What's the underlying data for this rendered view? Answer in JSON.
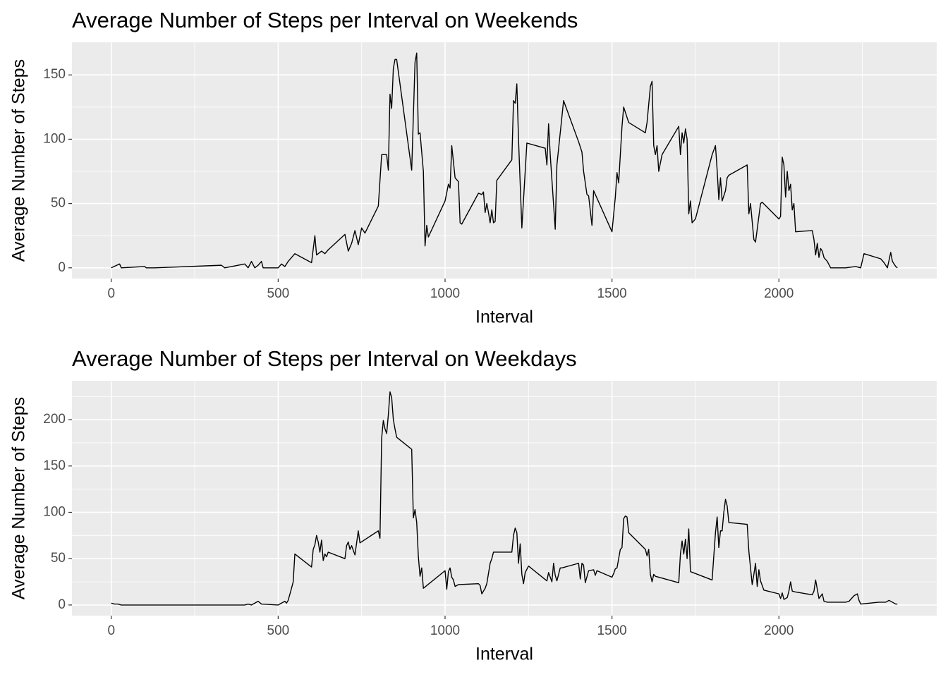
{
  "chart_data": [
    {
      "type": "line",
      "title": "Average Number of Steps per Interval on Weekends",
      "x_label": "Interval",
      "y_label": "Average Number of Steps",
      "color": "#000000",
      "xlim": [
        -117.75,
        2472.75
      ],
      "xticks": [
        0,
        500,
        1000,
        1500,
        2000
      ],
      "minor_xticks": [
        250,
        750,
        1250,
        1750,
        2250
      ],
      "ylim": [
        -8.35,
        175.35
      ],
      "yticks": [
        0,
        50,
        100,
        150
      ],
      "minor_yticks": [
        25,
        75,
        125
      ],
      "grid": true,
      "x": [
        0,
        25,
        30,
        100,
        105,
        130,
        330,
        340,
        400,
        410,
        420,
        430,
        440,
        450,
        455,
        500,
        510,
        520,
        530,
        550,
        600,
        610,
        615,
        630,
        640,
        650,
        700,
        710,
        720,
        730,
        740,
        750,
        760,
        800,
        810,
        825,
        830,
        835,
        840,
        845,
        850,
        855,
        900,
        910,
        915,
        920,
        925,
        935,
        940,
        945,
        950,
        1000,
        1010,
        1015,
        1020,
        1030,
        1040,
        1045,
        1050,
        1100,
        1110,
        1115,
        1120,
        1125,
        1130,
        1135,
        1140,
        1145,
        1150,
        1155,
        1200,
        1205,
        1210,
        1215,
        1220,
        1230,
        1245,
        1300,
        1305,
        1310,
        1315,
        1330,
        1335,
        1355,
        1400,
        1410,
        1415,
        1425,
        1430,
        1440,
        1445,
        1500,
        1510,
        1515,
        1520,
        1530,
        1535,
        1550,
        1600,
        1605,
        1615,
        1620,
        1625,
        1630,
        1635,
        1640,
        1650,
        1700,
        1705,
        1710,
        1715,
        1720,
        1725,
        1730,
        1735,
        1740,
        1750,
        1800,
        1810,
        1815,
        1820,
        1825,
        1830,
        1840,
        1845,
        1850,
        1905,
        1910,
        1915,
        1925,
        1930,
        1945,
        1950,
        2000,
        2005,
        2010,
        2015,
        2020,
        2025,
        2030,
        2035,
        2040,
        2045,
        2050,
        2100,
        2105,
        2110,
        2115,
        2120,
        2125,
        2130,
        2135,
        2145,
        2155,
        2200,
        2230,
        2245,
        2255,
        2305,
        2315,
        2325,
        2335,
        2340,
        2350,
        2355
      ],
      "values": [
        0,
        3,
        0,
        1,
        0,
        0,
        2,
        0,
        3,
        0,
        5,
        0,
        2,
        5,
        0,
        0,
        3,
        1,
        5,
        11,
        4,
        25,
        10,
        13,
        11,
        14,
        26,
        13,
        19,
        29,
        18,
        31,
        27,
        48,
        88,
        88,
        76,
        135,
        124,
        155,
        162,
        162,
        76,
        160,
        167,
        104,
        105,
        75,
        17,
        33,
        24,
        52,
        65,
        62,
        95,
        70,
        67,
        35,
        34,
        58,
        57,
        59,
        43,
        50,
        43,
        35,
        45,
        35,
        36,
        68,
        84,
        130,
        128,
        143,
        100,
        31,
        97,
        93,
        80,
        112,
        88,
        30,
        80,
        130,
        98,
        90,
        75,
        57,
        56,
        33,
        60,
        28,
        55,
        74,
        66,
        110,
        125,
        113,
        105,
        113,
        141,
        145,
        95,
        88,
        95,
        75,
        88,
        110,
        88,
        105,
        97,
        108,
        100,
        42,
        52,
        35,
        38,
        88,
        95,
        76,
        53,
        70,
        52,
        60,
        70,
        72,
        80,
        42,
        50,
        22,
        20,
        50,
        51,
        38,
        40,
        86,
        80,
        55,
        75,
        60,
        65,
        45,
        50,
        28,
        29,
        22,
        10,
        19,
        8,
        15,
        13,
        8,
        5,
        0,
        0,
        1,
        0,
        11,
        7,
        4,
        0,
        12,
        5,
        1,
        0
      ]
    },
    {
      "type": "line",
      "title": "Average Number of Steps per Interval on Weekdays",
      "x_label": "Interval",
      "y_label": "Average Number of Steps",
      "color": "#000000",
      "xlim": [
        -117.75,
        2472.75
      ],
      "xticks": [
        0,
        500,
        1000,
        1500,
        2000
      ],
      "minor_xticks": [
        250,
        750,
        1250,
        1750,
        2250
      ],
      "ylim": [
        -11.5,
        241.9
      ],
      "yticks": [
        0,
        50,
        100,
        150,
        200
      ],
      "minor_yticks": [
        25,
        75,
        125,
        175,
        225
      ],
      "grid": true,
      "x": [
        0,
        10,
        20,
        30,
        100,
        200,
        300,
        400,
        410,
        420,
        430,
        440,
        450,
        500,
        510,
        520,
        525,
        530,
        540,
        545,
        550,
        600,
        605,
        610,
        615,
        620,
        625,
        630,
        635,
        640,
        645,
        650,
        700,
        705,
        710,
        715,
        720,
        730,
        740,
        745,
        800,
        805,
        810,
        815,
        820,
        825,
        830,
        835,
        840,
        845,
        850,
        855,
        900,
        905,
        910,
        915,
        920,
        925,
        930,
        935,
        1000,
        1005,
        1010,
        1015,
        1020,
        1025,
        1030,
        1040,
        1100,
        1105,
        1110,
        1120,
        1125,
        1135,
        1140,
        1145,
        1200,
        1205,
        1210,
        1215,
        1220,
        1225,
        1230,
        1235,
        1240,
        1250,
        1305,
        1310,
        1320,
        1325,
        1330,
        1335,
        1340,
        1345,
        1350,
        1400,
        1405,
        1410,
        1415,
        1420,
        1430,
        1445,
        1450,
        1455,
        1500,
        1505,
        1510,
        1515,
        1520,
        1525,
        1530,
        1535,
        1540,
        1545,
        1550,
        1600,
        1605,
        1610,
        1615,
        1620,
        1625,
        1630,
        1700,
        1705,
        1710,
        1715,
        1720,
        1725,
        1730,
        1735,
        1800,
        1805,
        1810,
        1815,
        1820,
        1825,
        1830,
        1835,
        1840,
        1845,
        1850,
        1905,
        1910,
        1915,
        1920,
        1925,
        1930,
        1935,
        1940,
        1945,
        1955,
        2000,
        2005,
        2010,
        2015,
        2020,
        2025,
        2030,
        2035,
        2040,
        2050,
        2100,
        2105,
        2110,
        2115,
        2120,
        2130,
        2135,
        2145,
        2200,
        2210,
        2225,
        2235,
        2240,
        2245,
        2300,
        2320,
        2330,
        2340,
        2350,
        2355
      ],
      "values": [
        2,
        1,
        1,
        0,
        0,
        0,
        0,
        0,
        1,
        0,
        2,
        4,
        1,
        0,
        2,
        4,
        2,
        5,
        18,
        25,
        55,
        41,
        60,
        65,
        75,
        68,
        57,
        70,
        48,
        55,
        52,
        57,
        50,
        64,
        68,
        60,
        64,
        54,
        80,
        67,
        80,
        72,
        180,
        199,
        190,
        185,
        205,
        230,
        224,
        200,
        190,
        181,
        168,
        94,
        103,
        89,
        52,
        31,
        40,
        18,
        37,
        17,
        36,
        40,
        30,
        27,
        20,
        22,
        23,
        21,
        12,
        18,
        23,
        45,
        50,
        57,
        57,
        75,
        83,
        78,
        45,
        66,
        33,
        23,
        35,
        42,
        26,
        35,
        25,
        45,
        32,
        26,
        33,
        40,
        40,
        45,
        28,
        45,
        43,
        24,
        37,
        38,
        32,
        37,
        30,
        34,
        39,
        40,
        50,
        60,
        62,
        93,
        96,
        95,
        78,
        60,
        53,
        60,
        33,
        25,
        33,
        31,
        24,
        55,
        69,
        55,
        71,
        50,
        82,
        36,
        27,
        53,
        78,
        95,
        62,
        80,
        80,
        100,
        114,
        107,
        89,
        87,
        58,
        40,
        22,
        33,
        45,
        20,
        38,
        26,
        16,
        12,
        7,
        13,
        6,
        7,
        8,
        15,
        25,
        15,
        14,
        11,
        15,
        27,
        17,
        7,
        12,
        4,
        3,
        3,
        4,
        10,
        12,
        5,
        1,
        3,
        3,
        5,
        3,
        1,
        1
      ]
    }
  ]
}
